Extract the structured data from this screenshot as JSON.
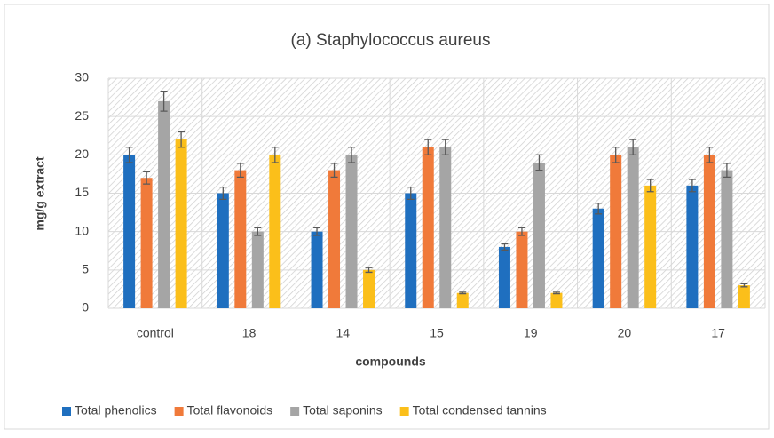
{
  "chart_data": {
    "type": "bar",
    "title": "(a) Staphylococcus aureus",
    "x_label": "compounds",
    "y_label": "mg/g extract",
    "categories": [
      "control",
      "18",
      "14",
      "15",
      "19",
      "20",
      "17"
    ],
    "series": [
      {
        "name": "Total phenolics",
        "color": "#1f6fbf",
        "values": [
          20,
          15,
          10,
          15,
          8,
          13,
          16
        ],
        "errors": [
          1,
          0.8,
          0.5,
          0.8,
          0.4,
          0.7,
          0.8
        ]
      },
      {
        "name": "Total flavonoids",
        "color": "#f07a3a",
        "values": [
          17,
          18,
          18,
          21,
          10,
          20,
          20
        ],
        "errors": [
          0.8,
          0.9,
          0.9,
          1,
          0.5,
          1,
          1
        ]
      },
      {
        "name": "Total saponins",
        "color": "#a5a5a5",
        "values": [
          27,
          10,
          20,
          21,
          19,
          21,
          18
        ],
        "errors": [
          1.3,
          0.5,
          1,
          1,
          1,
          1,
          0.9
        ]
      },
      {
        "name": "Total condensed tannins",
        "color": "#fbbf1a",
        "values": [
          22,
          20,
          5,
          2,
          2,
          16,
          3
        ],
        "errors": [
          1,
          1,
          0.3,
          0.1,
          0.1,
          0.8,
          0.2
        ]
      }
    ],
    "ylim": [
      0,
      30
    ],
    "yticks": [
      0,
      5,
      10,
      15,
      20,
      25,
      30
    ],
    "grid": true,
    "legend": "bottom"
  }
}
